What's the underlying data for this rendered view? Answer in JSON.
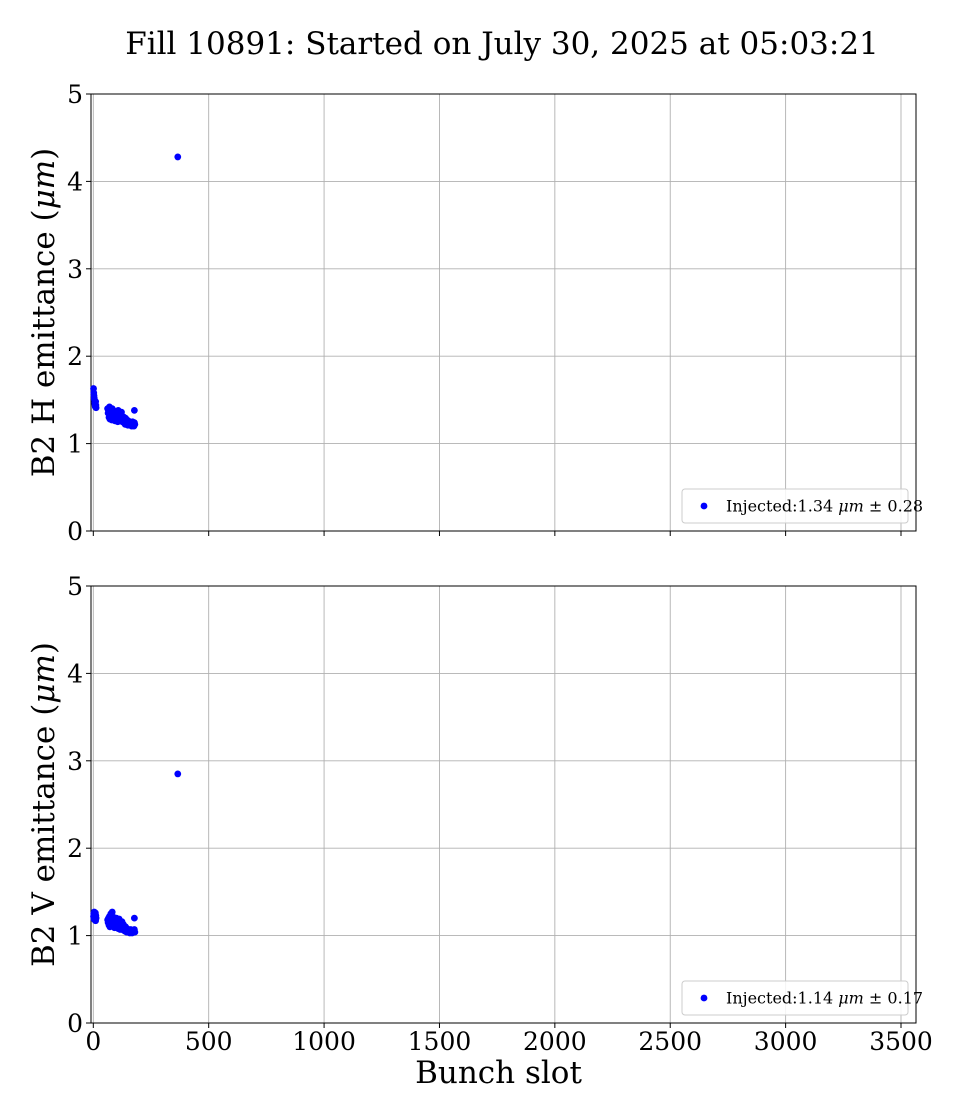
{
  "title": "Fill 10891: Started on July 30, 2025 at 05:03:21",
  "colors": {
    "points": "#0000ff",
    "grid": "#b0b0b0"
  },
  "chart_data": [
    {
      "type": "scatter",
      "ylabel_prefix": "B2 H emittance (",
      "ylabel_unit": "μm",
      "ylabel_suffix": ")",
      "xlabel": "",
      "xlim": [
        -10,
        3565
      ],
      "ylim": [
        0,
        5
      ],
      "xticks": [
        0,
        500,
        1000,
        1500,
        2000,
        2500,
        3000,
        3500
      ],
      "yticks": [
        0,
        1,
        2,
        3,
        4,
        5
      ],
      "show_xtick_labels": false,
      "grid": true,
      "legend": {
        "placement": "lower right",
        "prefix": "Injected:1.34 ",
        "unit": "μm",
        "suffix": " ± 0.28"
      },
      "series": [
        {
          "x": [
            1,
            2,
            3,
            4,
            5,
            6,
            7,
            8,
            9,
            10,
            11,
            12,
            62,
            64,
            66,
            68,
            70,
            72,
            74,
            76,
            78,
            80,
            82,
            84,
            86,
            88,
            90,
            92,
            94,
            96,
            98,
            100,
            102,
            104,
            106,
            108,
            110,
            112,
            114,
            116,
            118,
            120,
            122,
            124,
            126,
            128,
            130,
            132,
            134,
            136,
            138,
            140,
            142,
            144,
            146,
            148,
            150,
            152,
            154,
            156,
            158,
            160,
            162,
            164,
            166,
            168,
            170,
            172,
            174,
            176,
            178,
            180,
            178,
            366
          ],
          "y": [
            1.63,
            1.58,
            1.55,
            1.52,
            1.5,
            1.47,
            1.45,
            1.43,
            1.42,
            1.48,
            1.44,
            1.41,
            1.4,
            1.35,
            1.38,
            1.3,
            1.42,
            1.28,
            1.33,
            1.36,
            1.31,
            1.27,
            1.4,
            1.29,
            1.34,
            1.32,
            1.3,
            1.37,
            1.26,
            1.33,
            1.29,
            1.35,
            1.27,
            1.31,
            1.25,
            1.38,
            1.3,
            1.28,
            1.34,
            1.26,
            1.32,
            1.29,
            1.36,
            1.27,
            1.25,
            1.31,
            1.28,
            1.24,
            1.3,
            1.26,
            1.22,
            1.29,
            1.25,
            1.23,
            1.27,
            1.24,
            1.21,
            1.26,
            1.23,
            1.25,
            1.22,
            1.24,
            1.21,
            1.23,
            1.2,
            1.22,
            1.25,
            1.21,
            1.23,
            1.2,
            1.24,
            1.22,
            1.38,
            4.28
          ]
        }
      ]
    },
    {
      "type": "scatter",
      "ylabel_prefix": "B2 V emittance (",
      "ylabel_unit": "μm",
      "ylabel_suffix": ")",
      "xlabel": "Bunch slot",
      "xlim": [
        -10,
        3565
      ],
      "ylim": [
        0,
        5
      ],
      "xticks": [
        0,
        500,
        1000,
        1500,
        2000,
        2500,
        3000,
        3500
      ],
      "yticks": [
        0,
        1,
        2,
        3,
        4,
        5
      ],
      "show_xtick_labels": true,
      "grid": true,
      "legend": {
        "placement": "lower right",
        "prefix": "Injected:1.14 ",
        "unit": "μm",
        "suffix": " ± 0.17"
      },
      "series": [
        {
          "x": [
            1,
            2,
            3,
            4,
            5,
            6,
            7,
            8,
            9,
            10,
            11,
            12,
            62,
            64,
            66,
            68,
            70,
            72,
            74,
            76,
            78,
            80,
            82,
            84,
            86,
            88,
            90,
            92,
            94,
            96,
            98,
            100,
            102,
            104,
            106,
            108,
            110,
            112,
            114,
            116,
            118,
            120,
            122,
            124,
            126,
            128,
            130,
            132,
            134,
            136,
            138,
            140,
            142,
            144,
            146,
            148,
            150,
            152,
            154,
            156,
            158,
            160,
            162,
            164,
            166,
            168,
            170,
            172,
            174,
            176,
            178,
            180,
            178,
            366
          ],
          "y": [
            1.22,
            1.25,
            1.19,
            1.27,
            1.21,
            1.18,
            1.24,
            1.2,
            1.26,
            1.17,
            1.23,
            1.2,
            1.18,
            1.15,
            1.2,
            1.12,
            1.22,
            1.1,
            1.17,
            1.25,
            1.13,
            1.19,
            1.27,
            1.11,
            1.16,
            1.21,
            1.14,
            1.09,
            1.18,
            1.12,
            1.15,
            1.2,
            1.1,
            1.13,
            1.17,
            1.08,
            1.14,
            1.19,
            1.11,
            1.07,
            1.15,
            1.12,
            1.09,
            1.16,
            1.1,
            1.08,
            1.13,
            1.06,
            1.11,
            1.09,
            1.05,
            1.1,
            1.07,
            1.04,
            1.08,
            1.06,
            1.05,
            1.07,
            1.04,
            1.06,
            1.03,
            1.05,
            1.07,
            1.04,
            1.06,
            1.03,
            1.05,
            1.04,
            1.06,
            1.05,
            1.07,
            1.04,
            1.2,
            2.85
          ]
        }
      ]
    }
  ]
}
